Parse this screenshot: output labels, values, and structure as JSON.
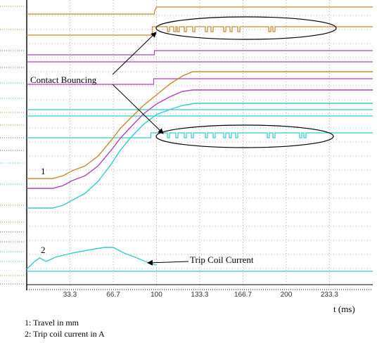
{
  "chart_data": {
    "type": "line",
    "title": "",
    "xlabel": "t (ms)",
    "ylabel": "",
    "xlim": [
      0,
      266.7
    ],
    "x_ticks": [
      "33.3",
      "66.7",
      "100",
      "133.3",
      "166.7",
      "200",
      "233.3"
    ],
    "x_tick_values": [
      33.3,
      66.7,
      100,
      133.3,
      166.7,
      200,
      233.3
    ],
    "grid": true,
    "series": [
      {
        "label": "1",
        "color": "#c88a2a",
        "x": [
          0,
          20,
          28,
          35,
          45,
          55,
          65,
          72,
          80,
          90,
          100,
          110,
          120,
          128,
          140,
          266.7
        ],
        "y": [
          254,
          254,
          250,
          243,
          236,
          222,
          200,
          183,
          168,
          150,
          135,
          120,
          108,
          102,
          102,
          102
        ]
      },
      {
        "label": "",
        "color": "#b040c0",
        "x": [
          0,
          20,
          28,
          35,
          45,
          55,
          65,
          72,
          80,
          90,
          100,
          110,
          120,
          128,
          135,
          266.7
        ],
        "y": [
          268,
          268,
          264,
          257,
          250,
          236,
          214,
          197,
          181,
          162,
          148,
          138,
          130,
          128,
          128,
          128
        ]
      },
      {
        "label": "",
        "color": "#33cccc",
        "x": [
          0,
          20,
          28,
          35,
          45,
          55,
          65,
          72,
          80,
          90,
          100,
          110,
          120,
          130,
          140,
          266.7
        ],
        "y": [
          296,
          296,
          292,
          285,
          275,
          258,
          234,
          214,
          196,
          177,
          163,
          156,
          150,
          147,
          147,
          147
        ]
      },
      {
        "label": "2",
        "color": "#33cccc",
        "x": [
          0,
          6,
          10,
          15,
          22,
          35,
          50,
          60,
          66.7,
          75,
          85,
          95,
          100
        ],
        "y": [
          383,
          372,
          367,
          372,
          366,
          360,
          355,
          352,
          352,
          360,
          367,
          375,
          377
        ]
      }
    ],
    "annotations": [
      "Contact Bouncing",
      "Trip Coil Current"
    ],
    "notes": [
      "1: Travel  in mm",
      "2: Trip  coil current  in A"
    ]
  },
  "labels": {
    "curve1": "1",
    "curve2": "2",
    "contact_bouncing": "Contact Bouncing",
    "trip_coil_current": "Trip Coil Current",
    "x_axis_label": "t (ms)",
    "legend1": "1: Travel  in mm",
    "legend2": "2: Trip  coil current  in A"
  },
  "colors": {
    "orange": "#c88a2a",
    "purple": "#b040c0",
    "cyan": "#33cccc"
  }
}
